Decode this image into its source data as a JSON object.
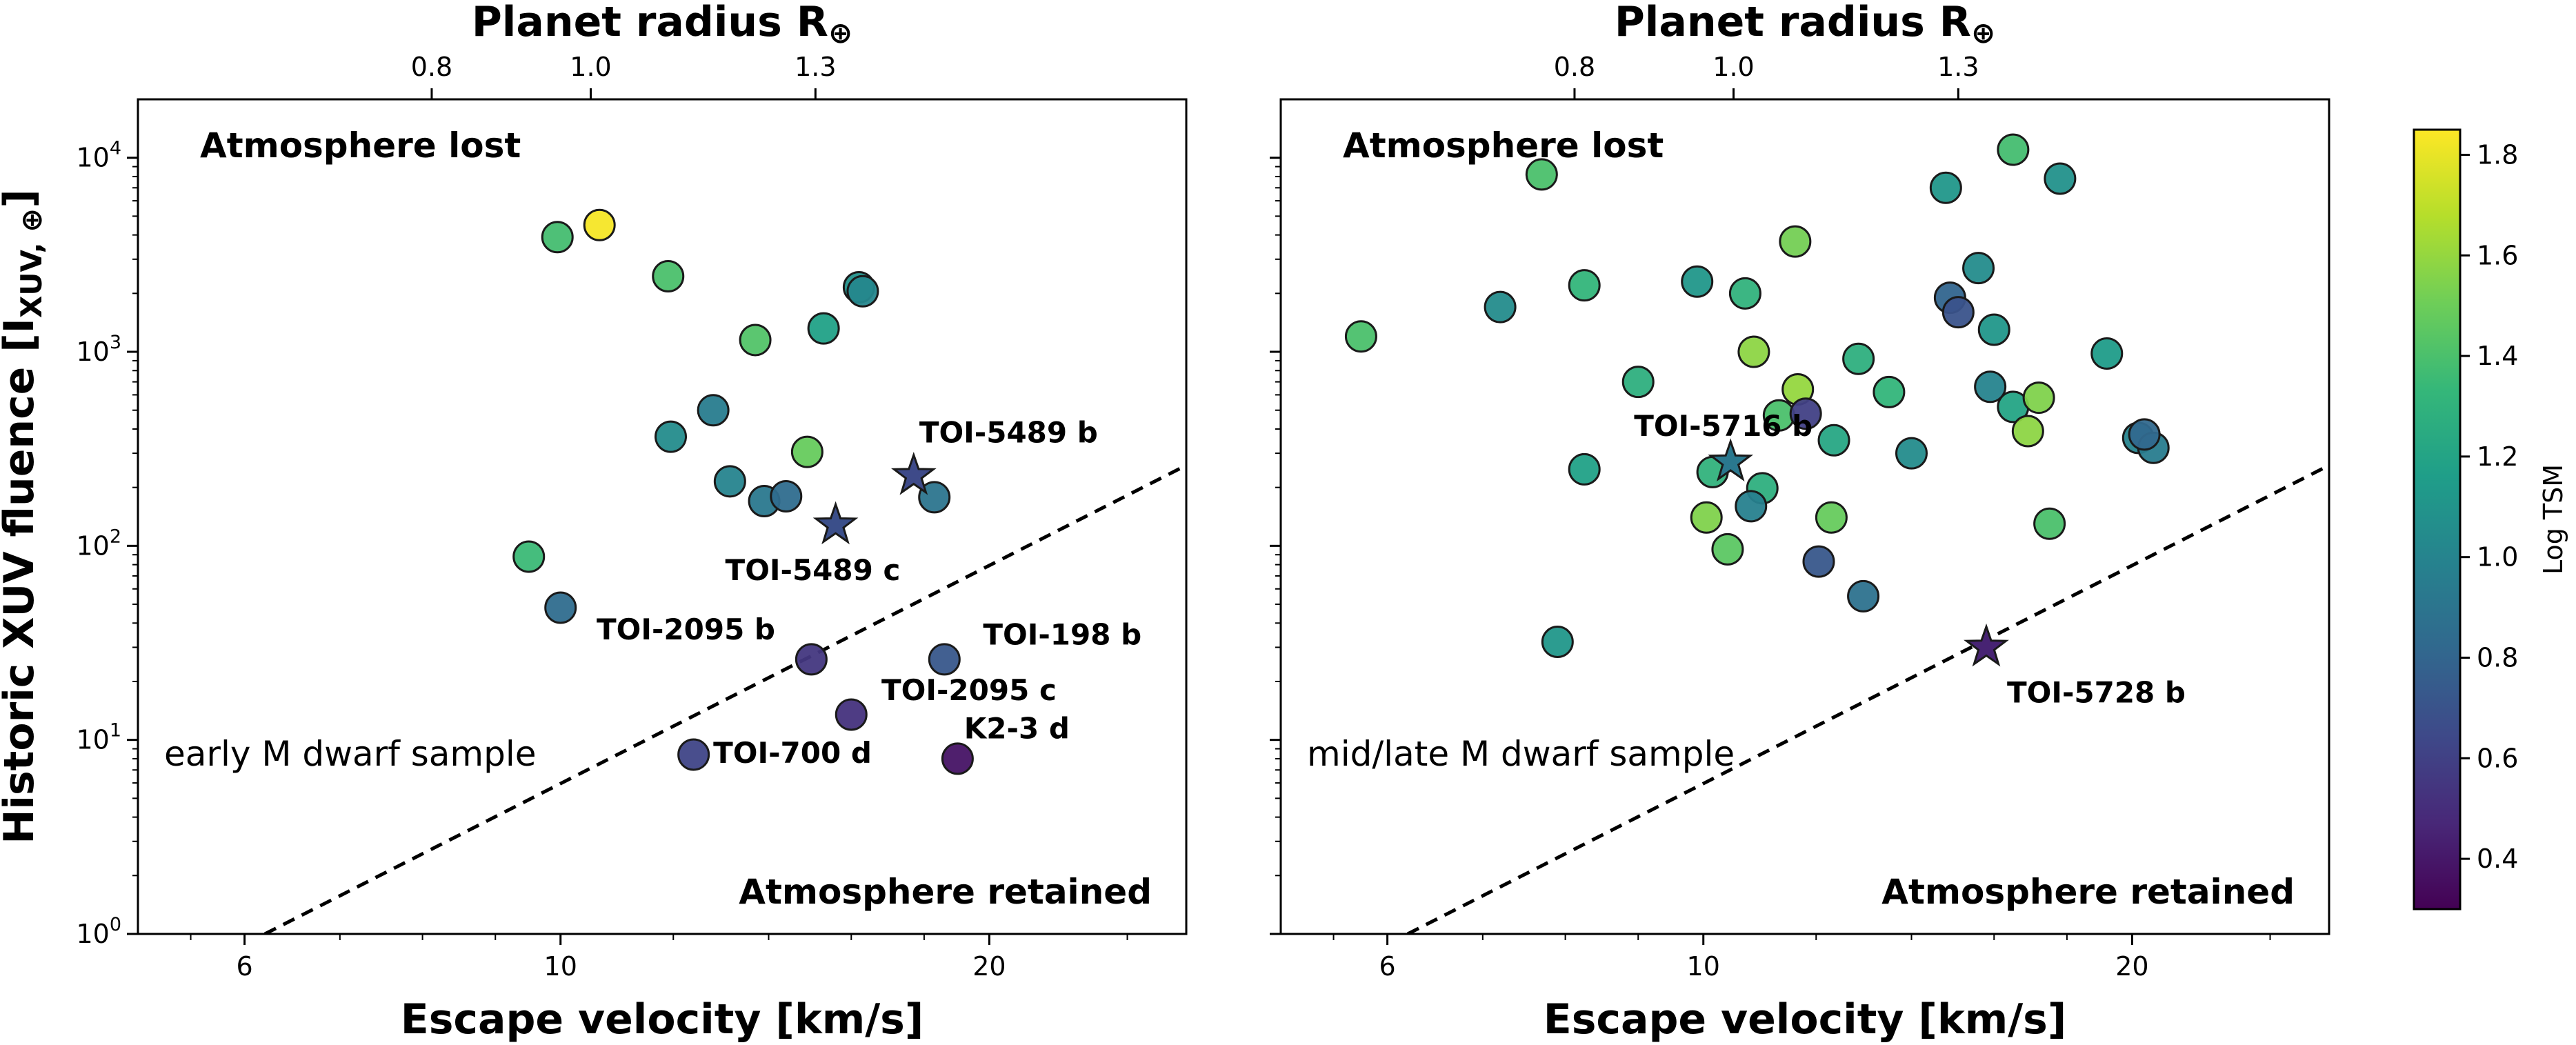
{
  "chart_data": [
    {
      "type": "scatter",
      "panel": "left",
      "xlabel": "Escape velocity [km/s]",
      "ylabel": "Historic XUV fluence [I",
      "ylabel_sub": "XUV, ⊕",
      "ylabel_end": "]",
      "top_xlabel": "Planet radius R",
      "top_xlabel_sub": "⊕",
      "xscale": "log",
      "yscale": "log",
      "xlim": [
        5.05,
        27.5
      ],
      "ylim": [
        1,
        20000
      ],
      "xticks": [
        {
          "v": 6,
          "label": "6"
        },
        {
          "v": 10,
          "label": "10"
        },
        {
          "v": 20,
          "label": "20"
        }
      ],
      "yticks": [
        {
          "v": 1,
          "base": "10",
          "exp": "0"
        },
        {
          "v": 10,
          "base": "10",
          "exp": "1"
        },
        {
          "v": 100,
          "base": "10",
          "exp": "2"
        },
        {
          "v": 1000,
          "base": "10",
          "exp": "3"
        },
        {
          "v": 10000,
          "base": "10",
          "exp": "4"
        }
      ],
      "top_ticks": [
        {
          "v": 8.12,
          "label": "0.8"
        },
        {
          "v": 10.5,
          "label": "1.0"
        },
        {
          "v": 15.1,
          "label": "1.3"
        }
      ],
      "region_top": "Atmosphere lost",
      "region_bottom": "Atmosphere retained",
      "sample_label": "early M dwarf sample",
      "shoreline": [
        [
          6.2,
          1
        ],
        [
          27.5,
          260
        ]
      ],
      "points": [
        {
          "x": 9.95,
          "y": 3900,
          "tsm": 1.38
        },
        {
          "x": 10.65,
          "y": 4500,
          "tsm": 1.83
        },
        {
          "x": 11.9,
          "y": 2450,
          "tsm": 1.4
        },
        {
          "x": 13.7,
          "y": 1150,
          "tsm": 1.42
        },
        {
          "x": 15.3,
          "y": 1320,
          "tsm": 1.18
        },
        {
          "x": 16.2,
          "y": 2150,
          "tsm": 1.08
        },
        {
          "x": 16.3,
          "y": 2050,
          "tsm": 1.02
        },
        {
          "x": 12.8,
          "y": 500,
          "tsm": 0.95
        },
        {
          "x": 11.95,
          "y": 365,
          "tsm": 1.05
        },
        {
          "x": 13.15,
          "y": 215,
          "tsm": 1.0
        },
        {
          "x": 13.9,
          "y": 170,
          "tsm": 0.92
        },
        {
          "x": 14.4,
          "y": 180,
          "tsm": 0.85
        },
        {
          "x": 14.9,
          "y": 305,
          "tsm": 1.48
        },
        {
          "x": 18.3,
          "y": 178,
          "tsm": 0.9
        },
        {
          "x": 9.5,
          "y": 88,
          "tsm": 1.35
        },
        {
          "x": 10.0,
          "y": 48,
          "tsm": 0.85
        },
        {
          "x": 15.0,
          "y": 26,
          "tsm": 0.55
        },
        {
          "x": 18.6,
          "y": 26,
          "tsm": 0.72
        },
        {
          "x": 16.0,
          "y": 13.5,
          "tsm": 0.52
        },
        {
          "x": 12.4,
          "y": 8.4,
          "tsm": 0.62
        },
        {
          "x": 19.0,
          "y": 8,
          "tsm": 0.38
        }
      ],
      "stars": [
        {
          "x": 17.7,
          "y": 230,
          "tsm": 0.65,
          "label": "TOI-5489 b"
        },
        {
          "x": 15.6,
          "y": 128,
          "tsm": 0.68,
          "label": "TOI-5489 c"
        }
      ],
      "labels": [
        {
          "text": "TOI-2095 b",
          "x": 10.6,
          "y": 33
        },
        {
          "text": "TOI-198 b",
          "x": 19.8,
          "y": 31
        },
        {
          "text": "TOI-2095 c",
          "x": 16.8,
          "y": 16
        },
        {
          "text": "K2-3 d",
          "x": 19.2,
          "y": 10.2
        },
        {
          "text": "TOI-700 d",
          "x": 12.8,
          "y": 7.6
        }
      ]
    },
    {
      "type": "scatter",
      "panel": "right",
      "xlabel": "Escape velocity [km/s]",
      "top_xlabel": "Planet radius R",
      "top_xlabel_sub": "⊕",
      "xscale": "log",
      "yscale": "log",
      "xlim": [
        5.05,
        27.5
      ],
      "ylim": [
        1,
        20000
      ],
      "xticks": [
        {
          "v": 6,
          "label": "6"
        },
        {
          "v": 10,
          "label": "10"
        },
        {
          "v": 20,
          "label": "20"
        }
      ],
      "top_ticks": [
        {
          "v": 8.12,
          "label": "0.8"
        },
        {
          "v": 10.5,
          "label": "1.0"
        },
        {
          "v": 15.1,
          "label": "1.3"
        }
      ],
      "region_top": "Atmosphere lost",
      "region_bottom": "Atmosphere retained",
      "sample_label": "mid/late M dwarf sample",
      "shoreline": [
        [
          6.2,
          1
        ],
        [
          27.5,
          260
        ]
      ],
      "points": [
        {
          "x": 7.7,
          "y": 8200,
          "tsm": 1.4
        },
        {
          "x": 16.5,
          "y": 11000,
          "tsm": 1.38
        },
        {
          "x": 14.8,
          "y": 7000,
          "tsm": 1.12
        },
        {
          "x": 17.8,
          "y": 7800,
          "tsm": 1.08
        },
        {
          "x": 5.75,
          "y": 1200,
          "tsm": 1.4
        },
        {
          "x": 7.2,
          "y": 1700,
          "tsm": 1.05
        },
        {
          "x": 8.25,
          "y": 2200,
          "tsm": 1.32
        },
        {
          "x": 9.9,
          "y": 2300,
          "tsm": 1.12
        },
        {
          "x": 10.7,
          "y": 2000,
          "tsm": 1.3
        },
        {
          "x": 11.6,
          "y": 3700,
          "tsm": 1.52
        },
        {
          "x": 15.6,
          "y": 2700,
          "tsm": 1.05
        },
        {
          "x": 14.9,
          "y": 1900,
          "tsm": 0.8
        },
        {
          "x": 15.1,
          "y": 1600,
          "tsm": 0.7
        },
        {
          "x": 16.0,
          "y": 1300,
          "tsm": 1.12
        },
        {
          "x": 10.85,
          "y": 1000,
          "tsm": 1.58
        },
        {
          "x": 12.85,
          "y": 920,
          "tsm": 1.28
        },
        {
          "x": 19.2,
          "y": 980,
          "tsm": 1.15
        },
        {
          "x": 9.0,
          "y": 700,
          "tsm": 1.28
        },
        {
          "x": 11.65,
          "y": 640,
          "tsm": 1.6
        },
        {
          "x": 13.5,
          "y": 620,
          "tsm": 1.32
        },
        {
          "x": 15.9,
          "y": 660,
          "tsm": 1.0
        },
        {
          "x": 16.5,
          "y": 520,
          "tsm": 1.2
        },
        {
          "x": 17.2,
          "y": 580,
          "tsm": 1.55
        },
        {
          "x": 11.3,
          "y": 470,
          "tsm": 1.4
        },
        {
          "x": 11.8,
          "y": 480,
          "tsm": 0.6
        },
        {
          "x": 12.35,
          "y": 350,
          "tsm": 1.22
        },
        {
          "x": 14.0,
          "y": 300,
          "tsm": 1.05
        },
        {
          "x": 16.9,
          "y": 390,
          "tsm": 1.58
        },
        {
          "x": 20.2,
          "y": 360,
          "tsm": 1.0
        },
        {
          "x": 20.7,
          "y": 320,
          "tsm": 0.95
        },
        {
          "x": 20.4,
          "y": 375,
          "tsm": 0.82
        },
        {
          "x": 8.25,
          "y": 248,
          "tsm": 1.18
        },
        {
          "x": 10.15,
          "y": 240,
          "tsm": 1.3
        },
        {
          "x": 11.0,
          "y": 198,
          "tsm": 1.28
        },
        {
          "x": 10.8,
          "y": 160,
          "tsm": 0.98
        },
        {
          "x": 10.05,
          "y": 140,
          "tsm": 1.55
        },
        {
          "x": 12.3,
          "y": 140,
          "tsm": 1.48
        },
        {
          "x": 17.5,
          "y": 130,
          "tsm": 1.4
        },
        {
          "x": 10.4,
          "y": 96,
          "tsm": 1.45
        },
        {
          "x": 12.05,
          "y": 83,
          "tsm": 0.72
        },
        {
          "x": 12.95,
          "y": 55,
          "tsm": 0.88
        },
        {
          "x": 7.9,
          "y": 32,
          "tsm": 1.12
        }
      ],
      "stars": [
        {
          "x": 10.45,
          "y": 270,
          "tsm": 0.92,
          "label": "TOI-5716 b"
        },
        {
          "x": 15.8,
          "y": 30,
          "tsm": 0.45,
          "label": "TOI-5728 b"
        }
      ],
      "labels": []
    }
  ],
  "colorbar": {
    "label": "Log TSM",
    "min": 0.3,
    "max": 1.85,
    "ticks": [
      "0.4",
      "0.6",
      "0.8",
      "1.0",
      "1.2",
      "1.4",
      "1.6",
      "1.8"
    ],
    "colors": [
      "#440154",
      "#482878",
      "#3e4989",
      "#31688e",
      "#26828e",
      "#1f9e89",
      "#35b779",
      "#6ece58",
      "#b5de2b",
      "#fde725"
    ]
  }
}
